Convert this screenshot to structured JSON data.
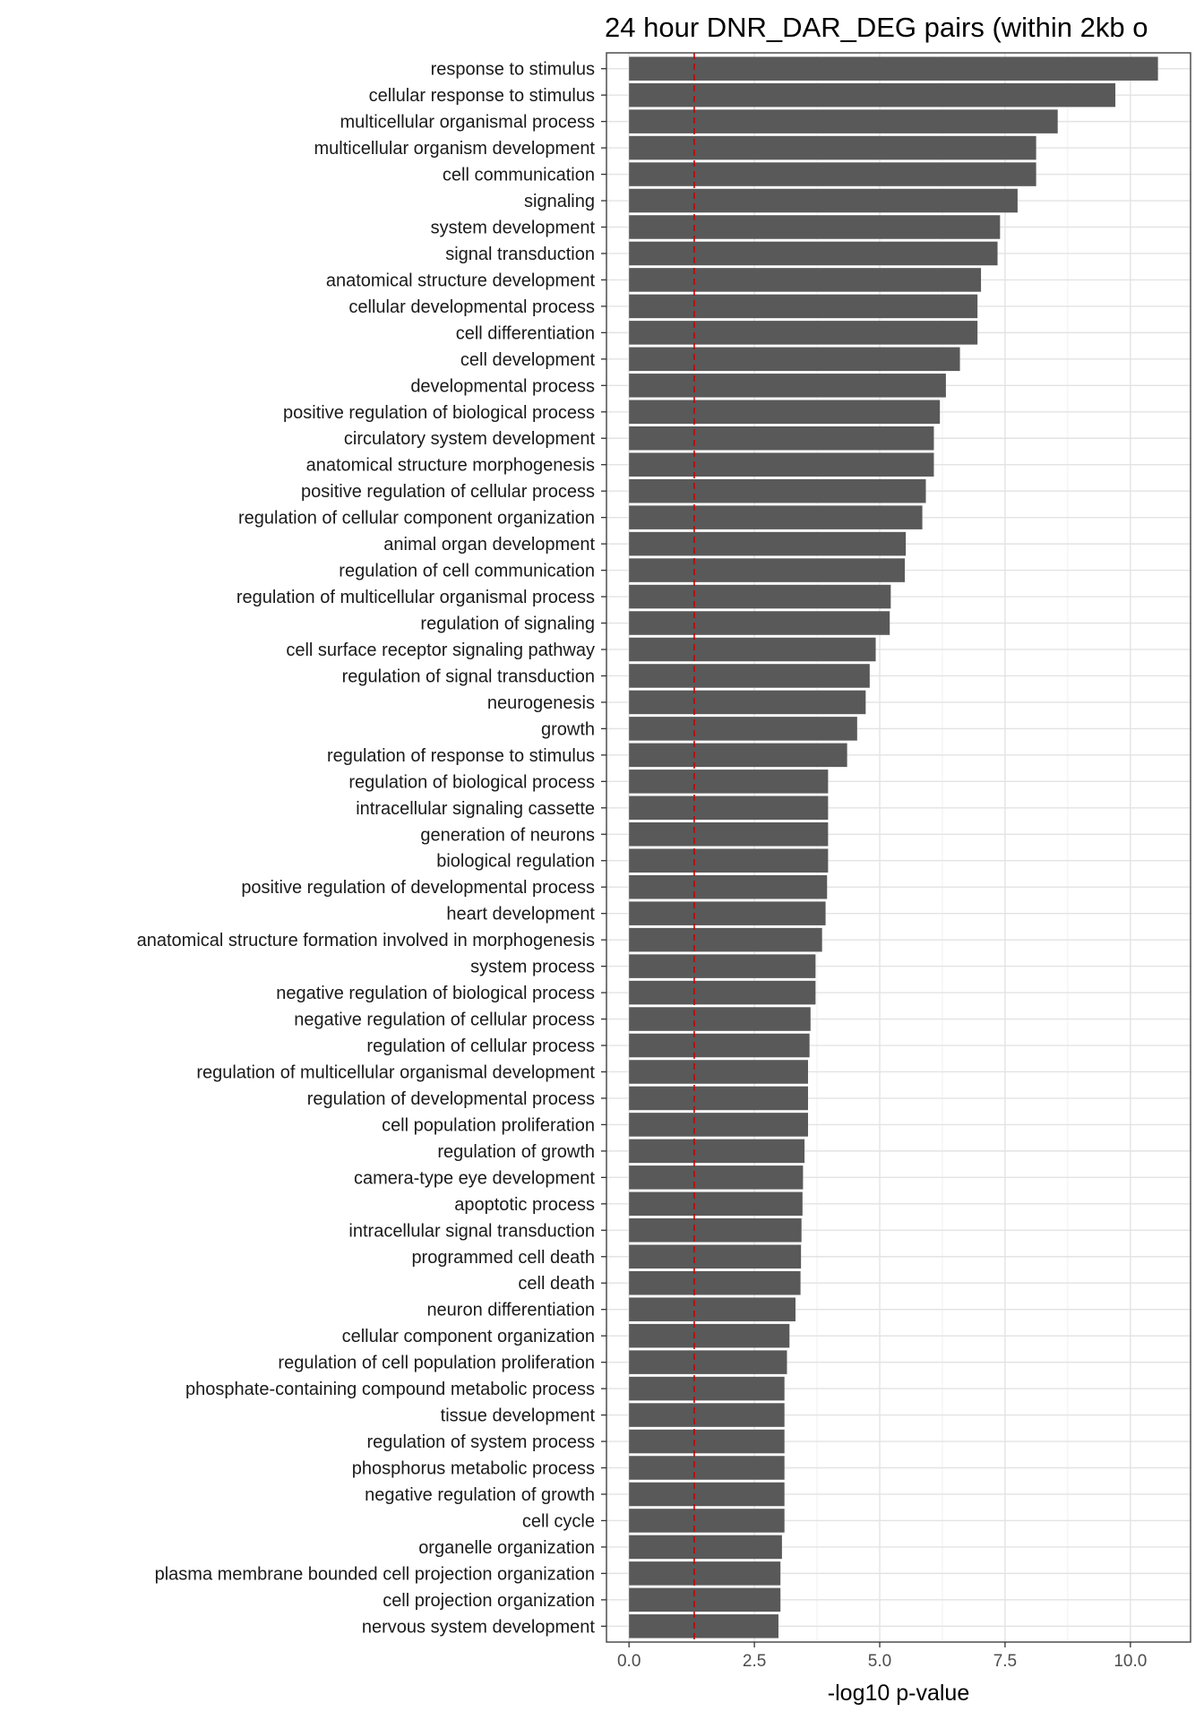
{
  "chart_data": {
    "type": "bar",
    "orientation": "horizontal",
    "title": "24 hour DNR_DAR_DEG pairs (within 2kb o",
    "xlabel": "-log10 p-value",
    "ylabel": "",
    "xlim": [
      -0.45,
      11.2
    ],
    "xticks": [
      0.0,
      2.5,
      5.0,
      7.5,
      10.0
    ],
    "xtick_labels": [
      "0.0",
      "2.5",
      "5.0",
      "7.5",
      "10.0"
    ],
    "grid": true,
    "reference_line": {
      "x": 1.3,
      "color": "#cc0000",
      "style": "dashed"
    },
    "bar_color": "#595959",
    "categories": [
      "response to stimulus",
      "cellular response to stimulus",
      "multicellular organismal process",
      "multicellular organism development",
      "cell communication",
      "signaling",
      "system development",
      "signal transduction",
      "anatomical structure development",
      "cellular developmental process",
      "cell differentiation",
      "cell development",
      "developmental process",
      "positive regulation of biological process",
      "circulatory system development",
      "anatomical structure morphogenesis",
      "positive regulation of cellular process",
      "regulation of cellular component organization",
      "animal organ development",
      "regulation of cell communication",
      "regulation of multicellular organismal process",
      "regulation of signaling",
      "cell surface receptor signaling pathway",
      "regulation of signal transduction",
      "neurogenesis",
      "growth",
      "regulation of response to stimulus",
      "regulation of biological process",
      "intracellular signaling cassette",
      "generation of neurons",
      "biological regulation",
      "positive regulation of developmental process",
      "heart development",
      "anatomical structure formation involved in morphogenesis",
      "system process",
      "negative regulation of biological process",
      "negative regulation of cellular process",
      "regulation of cellular process",
      "regulation of multicellular organismal development",
      "regulation of developmental process",
      "cell population proliferation",
      "regulation of growth",
      "camera-type eye development",
      "apoptotic process",
      "intracellular signal transduction",
      "programmed cell death",
      "cell death",
      "neuron differentiation",
      "cellular component organization",
      "regulation of cell population proliferation",
      "phosphate-containing compound metabolic process",
      "tissue development",
      "regulation of system process",
      "phosphorus metabolic process",
      "negative regulation of growth",
      "cell cycle",
      "organelle organization",
      "plasma membrane bounded cell projection organization",
      "cell projection organization",
      "nervous system development"
    ],
    "values": [
      10.55,
      9.7,
      8.55,
      8.12,
      8.12,
      7.75,
      7.4,
      7.35,
      7.02,
      6.95,
      6.95,
      6.6,
      6.32,
      6.2,
      6.08,
      6.08,
      5.92,
      5.85,
      5.52,
      5.5,
      5.22,
      5.2,
      4.92,
      4.8,
      4.72,
      4.55,
      4.35,
      3.97,
      3.97,
      3.97,
      3.97,
      3.95,
      3.92,
      3.85,
      3.72,
      3.72,
      3.62,
      3.6,
      3.57,
      3.57,
      3.57,
      3.5,
      3.47,
      3.46,
      3.44,
      3.43,
      3.42,
      3.32,
      3.2,
      3.15,
      3.1,
      3.1,
      3.1,
      3.1,
      3.1,
      3.1,
      3.05,
      3.02,
      3.02,
      2.98
    ]
  }
}
